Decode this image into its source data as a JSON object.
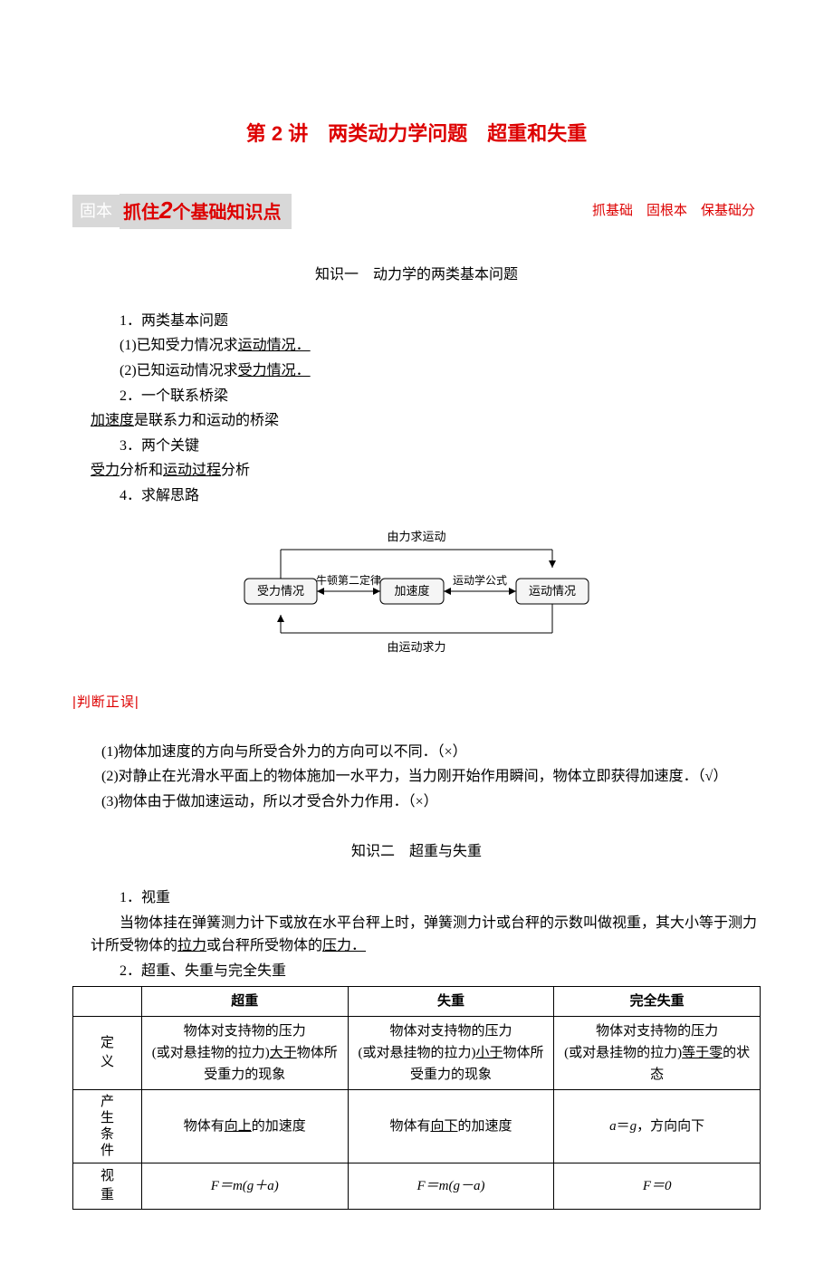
{
  "title": "第 2 讲　两类动力学问题　超重和失重",
  "banner": {
    "left_tag": "固本",
    "mid_pre": "抓住",
    "mid_big": "2",
    "mid_post": "个基础知识点",
    "right": "抓基础　固根本　保基础分"
  },
  "section1": {
    "heading": "知识一　动力学的两类基本问题",
    "p1": "1．两类基本问题",
    "p1a_pre": "(1)已知受力情况求",
    "p1a_u": "运动情况．",
    "p1b_pre": "(2)已知运动情况求",
    "p1b_u": "受力情况．",
    "p2": "2．一个联系桥梁",
    "p2a_u": "加速度",
    "p2a_post": "是联系力和运动的桥梁",
    "p3": "3．两个关键",
    "p3a_u1": "受力",
    "p3a_mid": "分析和",
    "p3a_u2": "运动过程",
    "p3a_post": "分析",
    "p4": "4．求解思路"
  },
  "diagram": {
    "top_label": "由力求运动",
    "box_left": "受力情况",
    "arrow_l_label": "牛顿第二定律",
    "box_mid": "加速度",
    "arrow_r_label": "运动学公式",
    "box_right": "运动情况",
    "bottom_label": "由运动求力",
    "box_fill": "#f5f5f5",
    "stroke": "#000",
    "font_size": 13
  },
  "judge": {
    "title": "|判断正误|",
    "i1": "(1)物体加速度的方向与所受合外力的方向可以不同．（×）",
    "i2": "(2)对静止在光滑水平面上的物体施加一水平力，当力刚开始作用瞬间，物体立即获得加速度．（√）",
    "i3": "(3)物体由于做加速运动，所以才受合外力作用．（×）"
  },
  "section2": {
    "heading": "知识二　超重与失重",
    "p1": "1．视重",
    "p1a_pre": "当物体挂在弹簧测力计下或放在水平台秤上时，弹簧测力计或台秤的示数叫做视重，其大小等于测力计所受物体的",
    "p1a_u1": "拉力",
    "p1a_mid": "或台秤所受物体的",
    "p1a_u2": "压力．",
    "p2": "2．超重、失重与完全失重"
  },
  "table": {
    "headers": [
      "",
      "超重",
      "失重",
      "完全失重"
    ],
    "row_labels": [
      "定义",
      "产生条件",
      "视重"
    ],
    "r1c1_l1": "物体对支持物的压力",
    "r1c1_l2_pre": "(或对悬挂物的拉力)",
    "r1c1_l2_u": "大于",
    "r1c1_l2_post": "物体所受重力的现象",
    "r1c2_l1": "物体对支持物的压力",
    "r1c2_l2_pre": "(或对悬挂物的拉力)",
    "r1c2_l2_u": "小于",
    "r1c2_l2_post": "物体所受重力的现象",
    "r1c3_l1": "物体对支持物的压力",
    "r1c3_l2_pre": "(或对悬挂物的拉力)",
    "r1c3_l2_u": "等于零",
    "r1c3_l2_post": "的状态",
    "r2c1_pre": "物体有",
    "r2c1_u": "向上",
    "r2c1_post": "的加速度",
    "r2c2_pre": "物体有",
    "r2c2_u": "向下",
    "r2c2_post": "的加速度",
    "r2c3": "a＝g，方向向下",
    "r3c1": "F＝m(g＋a)",
    "r3c2": "F＝m(g－a)",
    "r3c3": "F＝0"
  }
}
